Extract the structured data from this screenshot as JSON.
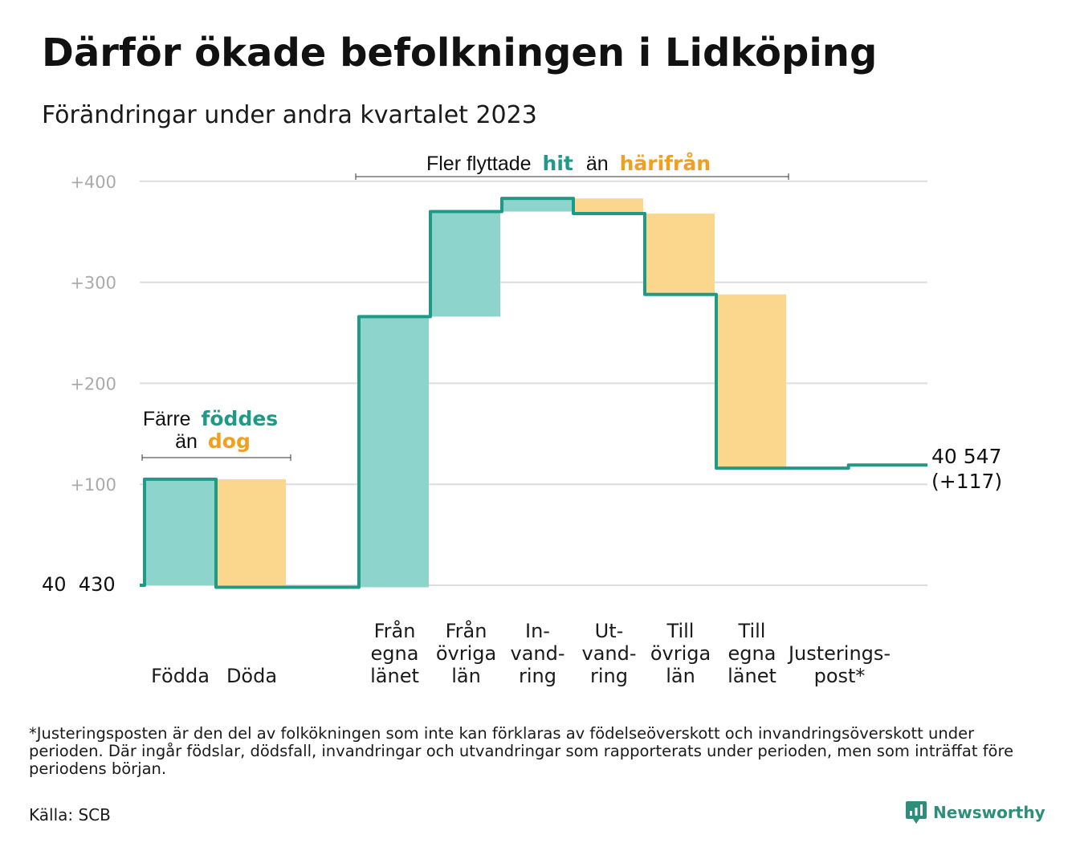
{
  "header": {
    "title": "Därför ökade befolkningen i Lidköping",
    "subtitle": "Förändringar under andra kvartalet 2023"
  },
  "annotations": {
    "group1": {
      "line1_pre": "Färre",
      "line1_hl": "föddes",
      "line2_pre": "än",
      "line2_hl": "dog"
    },
    "group2": {
      "pre": "Fler flyttade",
      "hl1": "hit",
      "mid": "än",
      "hl2": "härifrån"
    }
  },
  "end_label": {
    "line1": "40 547",
    "line2": "(+117)"
  },
  "start_label": "40  430",
  "colors": {
    "teal_line": "#1f9a87",
    "teal_fill": "#8dd5cc",
    "orange_fill": "#fad78d",
    "teal_text": "#1f9a87",
    "orange_text": "#f0a01e",
    "grid": "#dddddd",
    "tick_text": "#aaaaaa"
  },
  "chart_data": {
    "type": "waterfall",
    "base_population": 40430,
    "ylim": [
      0,
      400
    ],
    "ytick_labels": [
      "+100",
      "+200",
      "+300",
      "+400"
    ],
    "ytick_values": [
      100,
      200,
      300,
      400
    ],
    "steps": [
      {
        "label": [
          "Födda"
        ],
        "change": 105,
        "kind": "in"
      },
      {
        "label": [
          "Döda"
        ],
        "change": -107,
        "kind": "out"
      },
      {
        "label": [],
        "change": 0,
        "kind": "none"
      },
      {
        "label": [
          "Från",
          "egna",
          "länet"
        ],
        "change": 268,
        "kind": "in"
      },
      {
        "label": [
          "Från",
          "övriga",
          "län"
        ],
        "change": 104,
        "kind": "in"
      },
      {
        "label": [
          "In-",
          "vand-",
          "ring"
        ],
        "change": 13,
        "kind": "in"
      },
      {
        "label": [
          "Ut-",
          "vand-",
          "ring"
        ],
        "change": -15,
        "kind": "out"
      },
      {
        "label": [
          "Till",
          "övriga",
          "län"
        ],
        "change": -80,
        "kind": "out"
      },
      {
        "label": [
          "Till",
          "egna",
          "länet"
        ],
        "change": -172,
        "kind": "out"
      },
      {
        "label": [
          "Justerings-",
          "post*"
        ],
        "change": 3,
        "kind": "adj"
      }
    ],
    "end_value": 40547,
    "net_change": 117
  },
  "footer": {
    "footnote": "*Justeringsposten är den del av folkökningen som inte kan förklaras av födelseöverskott och invandringsöverskott under perioden. Där ingår födslar, dödsfall, invandringar och utvandringar som rapporterats under perioden, men som inträffat före periodens början.",
    "source": "Källa: SCB",
    "brand": "Newsworthy",
    "brand_icon": "newsworthy-logo-icon"
  }
}
